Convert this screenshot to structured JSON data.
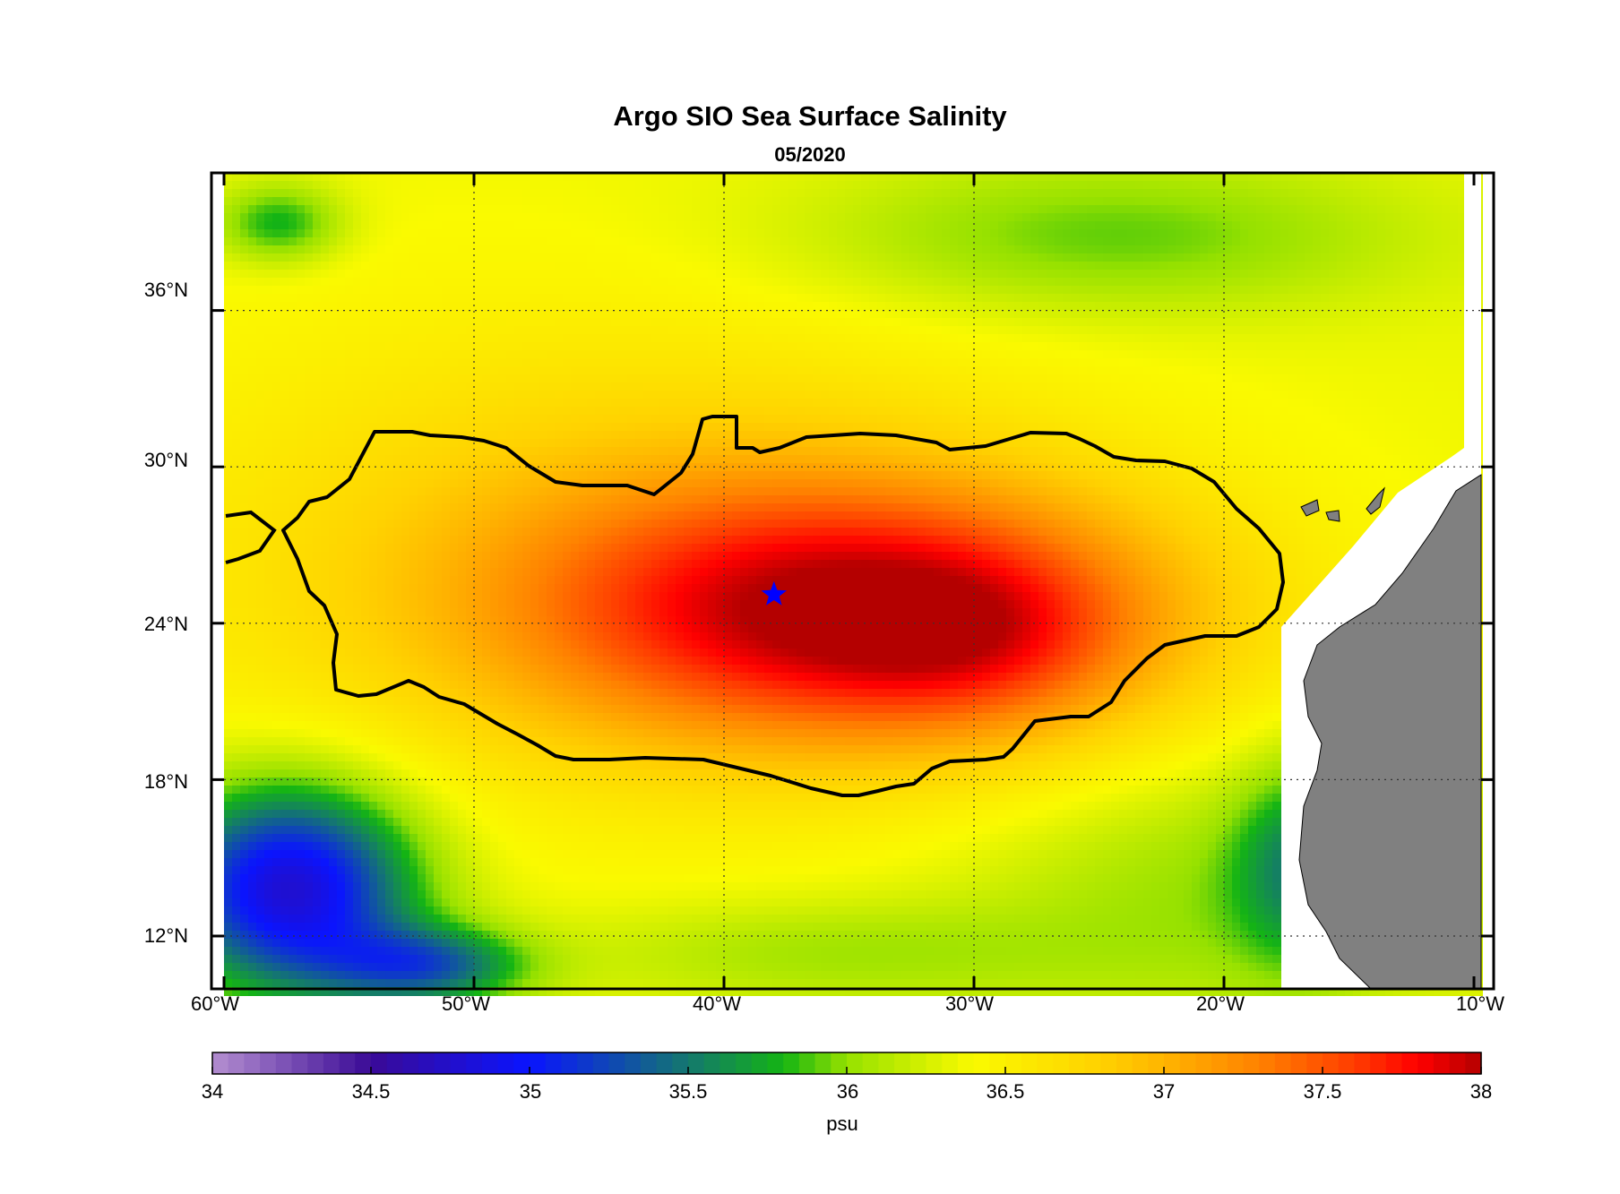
{
  "title": "Argo SIO Sea Surface Salinity",
  "subtitle": "05/2020",
  "lat_ticks": [
    "36°N",
    "30°N",
    "24°N",
    "18°N",
    "12°N"
  ],
  "lon_ticks": [
    "60°W",
    "50°W",
    "40°W",
    "30°W",
    "20°W",
    "10°W"
  ],
  "colorbar": {
    "unit": "psu",
    "tick_labels": [
      "34",
      "34.5",
      "35",
      "35.5",
      "36",
      "36.5",
      "37",
      "37.5",
      "38"
    ],
    "min": 34,
    "max": 38,
    "colors": {
      "34.0": "#b48fd0",
      "34.5": "#3a0a96",
      "35.0": "#0a14ff",
      "35.5": "#14786e",
      "35.8": "#14b414",
      "36.0": "#96e100",
      "36.4": "#fafa00",
      "36.8": "#ffd200",
      "37.0": "#ffb400",
      "37.3": "#ff8200",
      "37.6": "#ff3c00",
      "37.8": "#ff0000",
      "38.0": "#b40000"
    }
  },
  "map": {
    "lon_range": [
      -60,
      -10
    ],
    "lat_range": [
      10,
      40
    ],
    "land_color": "#808080",
    "missing_data_color": "#ffffff",
    "contour_value_psu": 37,
    "marker": {
      "symbol": "star",
      "color": "#0000ff",
      "lon": -38,
      "lat": 25.1
    }
  }
}
